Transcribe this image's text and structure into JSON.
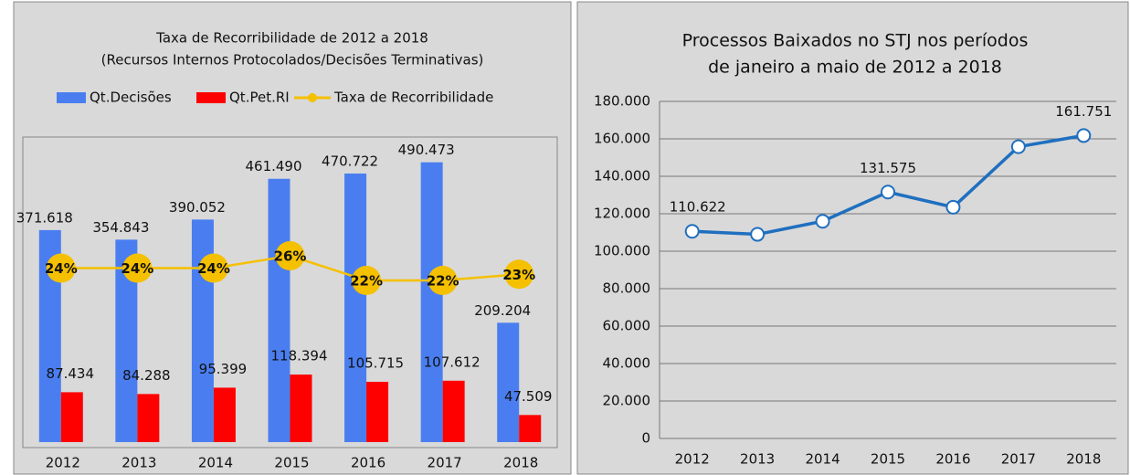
{
  "chart_data": [
    {
      "type": "bar",
      "title": "Taxa de Recorribilidade de 2012  a 2018",
      "subtitle": "(Recursos Internos Protocolados/Decisões Terminativas)",
      "categories": [
        "2012",
        "2013",
        "2014",
        "2015",
        "2016",
        "2017",
        "2018"
      ],
      "legend": "top",
      "series": [
        {
          "name": "Qt.Decisões",
          "color": "#4a7ef0",
          "values": [
            371618,
            354843,
            390052,
            461490,
            470722,
            490473,
            209204
          ],
          "value_labels": [
            "371.618",
            "354.843",
            "390.052",
            "461.490",
            "470.722",
            "490.473",
            "209.204"
          ]
        },
        {
          "name": "Qt.Pet.RI",
          "color": "#ff0000",
          "values": [
            87434,
            84288,
            95399,
            118394,
            105715,
            107612,
            47509
          ],
          "value_labels": [
            "87.434",
            "84.288",
            "95.399",
            "118.394",
            "105.715",
            "107.612",
            "47.509"
          ]
        },
        {
          "name": "Taxa de Recorribilidade",
          "type": "line",
          "axis": "y2",
          "color": "#f5c000",
          "values": [
            24,
            24,
            24,
            26,
            22,
            22,
            23
          ],
          "value_labels": [
            "24%",
            "24%",
            "24%",
            "26%",
            "22%",
            "22%",
            "23%"
          ]
        }
      ]
    },
    {
      "type": "line",
      "title": [
        "Processos Baixados no STJ nos períodos",
        "de janeiro a maio de 2012 a 2018"
      ],
      "categories": [
        "2012",
        "2013",
        "2014",
        "2015",
        "2016",
        "2017",
        "2018"
      ],
      "color": "#1f6fbf",
      "values": [
        110622,
        109000,
        116000,
        131575,
        123500,
        155800,
        161751
      ],
      "value_labels": [
        "110.622",
        null,
        null,
        "131.575",
        null,
        null,
        "161.751"
      ],
      "ylim": [
        0,
        180000
      ],
      "yticks": [
        0,
        {
          "value": 20000,
          "label": "20.000"
        },
        {
          "value": 40000,
          "label": "40.000"
        },
        {
          "value": 60000,
          "label": "60.000"
        },
        {
          "value": 80000,
          "label": "80.000"
        },
        {
          "value": 100000,
          "label": "100.000"
        },
        {
          "value": 120000,
          "label": "120.000"
        },
        {
          "value": 140000,
          "label": "140.000"
        },
        {
          "value": 160000,
          "label": "160.000"
        },
        {
          "value": 180000,
          "label": "180.000"
        }
      ],
      "grid": true
    }
  ]
}
